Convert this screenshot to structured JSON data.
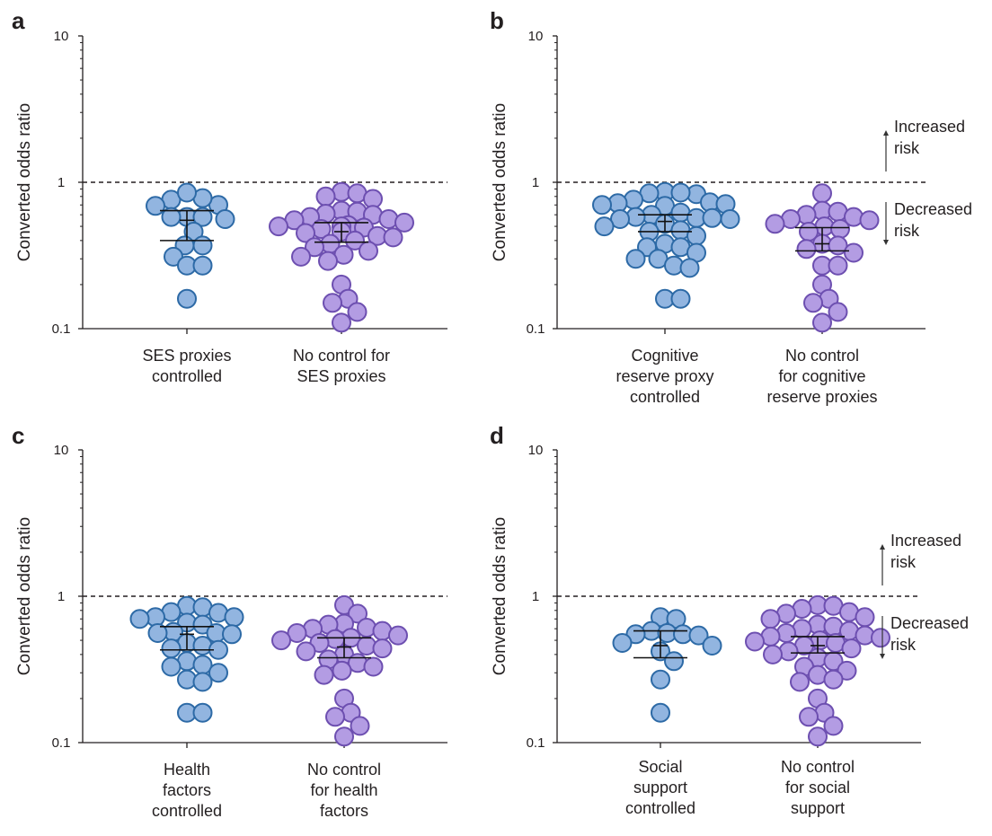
{
  "colors": {
    "controlled_fill": "#92b5e0",
    "controlled_stroke": "#2d6aa6",
    "uncontrolled_fill": "#b39ce3",
    "uncontrolled_stroke": "#6d4fb0",
    "axis": "#231f20"
  },
  "annotation": {
    "increased": [
      "Increased",
      "risk"
    ],
    "decreased": [
      "Decreased",
      "risk"
    ]
  },
  "chart_data": [
    {
      "type": "scatter",
      "panel": "a",
      "ylabel": "Converted odds ratio",
      "yscale": "log",
      "ylim": [
        0.1,
        10
      ],
      "yticks": [
        "10",
        "1",
        "0.1"
      ],
      "reference_line": 1,
      "show_risk_annotation": false,
      "categories": [
        {
          "label": [
            "SES proxies",
            "controlled"
          ],
          "group": "controlled",
          "ci": [
            0.4,
            0.64
          ],
          "center": 0.55,
          "points": [
            0.7,
            0.76,
            0.78,
            0.85,
            0.69,
            0.58,
            0.58,
            0.58,
            0.56,
            0.46,
            0.37,
            0.37,
            0.31,
            0.27,
            0.27,
            0.16
          ]
        },
        {
          "label": [
            "No control for",
            "SES proxies"
          ],
          "group": "uncontrolled",
          "ci": [
            0.39,
            0.53
          ],
          "center": 0.46,
          "points": [
            0.86,
            0.84,
            0.8,
            0.77,
            0.64,
            0.63,
            0.61,
            0.6,
            0.58,
            0.56,
            0.55,
            0.53,
            0.51,
            0.5,
            0.5,
            0.49,
            0.48,
            0.46,
            0.45,
            0.43,
            0.42,
            0.4,
            0.38,
            0.36,
            0.34,
            0.32,
            0.31,
            0.29,
            0.2,
            0.16,
            0.15,
            0.13,
            0.11
          ]
        }
      ]
    },
    {
      "type": "scatter",
      "panel": "b",
      "ylabel": "Converted odds ratio",
      "yscale": "log",
      "ylim": [
        0.1,
        10
      ],
      "yticks": [
        "10",
        "1",
        "0.1"
      ],
      "reference_line": 1,
      "show_risk_annotation": true,
      "categories": [
        {
          "label": [
            "Cognitive",
            "reserve proxy",
            "controlled"
          ],
          "group": "controlled",
          "ci": [
            0.46,
            0.6
          ],
          "center": 0.54,
          "points": [
            0.86,
            0.83,
            0.84,
            0.85,
            0.76,
            0.73,
            0.72,
            0.7,
            0.69,
            0.71,
            0.62,
            0.6,
            0.58,
            0.57,
            0.57,
            0.56,
            0.56,
            0.5,
            0.52,
            0.47,
            0.46,
            0.43,
            0.38,
            0.36,
            0.36,
            0.33,
            0.3,
            0.3,
            0.27,
            0.26,
            0.16,
            0.16
          ]
        },
        {
          "label": [
            "No control",
            "for cognitive",
            "reserve proxies"
          ],
          "group": "uncontrolled",
          "ci": [
            0.34,
            0.49
          ],
          "center": 0.38,
          "points": [
            0.84,
            0.64,
            0.63,
            0.6,
            0.58,
            0.56,
            0.55,
            0.52,
            0.5,
            0.48,
            0.46,
            0.38,
            0.37,
            0.35,
            0.33,
            0.27,
            0.27,
            0.2,
            0.16,
            0.15,
            0.13,
            0.11
          ]
        }
      ]
    },
    {
      "type": "scatter",
      "panel": "c",
      "ylabel": "Converted odds ratio",
      "yscale": "log",
      "ylim": [
        0.1,
        10
      ],
      "yticks": [
        "10",
        "1",
        "0.1"
      ],
      "reference_line": 1,
      "show_risk_annotation": false,
      "categories": [
        {
          "label": [
            "Health",
            "factors",
            "controlled"
          ],
          "group": "controlled",
          "ci": [
            0.43,
            0.62
          ],
          "center": 0.55,
          "points": [
            0.86,
            0.84,
            0.78,
            0.77,
            0.72,
            0.72,
            0.7,
            0.66,
            0.64,
            0.57,
            0.56,
            0.56,
            0.55,
            0.48,
            0.46,
            0.44,
            0.43,
            0.36,
            0.34,
            0.33,
            0.3,
            0.27,
            0.26,
            0.16,
            0.16
          ]
        },
        {
          "label": [
            "No control",
            "for health",
            "factors"
          ],
          "group": "uncontrolled",
          "ci": [
            0.38,
            0.52
          ],
          "center": 0.45,
          "points": [
            0.87,
            0.76,
            0.65,
            0.64,
            0.61,
            0.6,
            0.58,
            0.56,
            0.54,
            0.52,
            0.51,
            0.5,
            0.48,
            0.46,
            0.44,
            0.42,
            0.4,
            0.37,
            0.35,
            0.33,
            0.31,
            0.29,
            0.2,
            0.16,
            0.15,
            0.13,
            0.11
          ]
        }
      ]
    },
    {
      "type": "scatter",
      "panel": "d",
      "ylabel": "Converted odds ratio",
      "yscale": "log",
      "ylim": [
        0.1,
        10
      ],
      "yticks": [
        "10",
        "1",
        "0.1"
      ],
      "reference_line": 1,
      "show_risk_annotation": true,
      "categories": [
        {
          "label": [
            "Social",
            "support",
            "controlled"
          ],
          "group": "controlled",
          "ci": [
            0.38,
            0.58
          ],
          "center": 0.46,
          "points": [
            0.72,
            0.7,
            0.58,
            0.56,
            0.55,
            0.55,
            0.54,
            0.48,
            0.46,
            0.42,
            0.36,
            0.27,
            0.16
          ]
        },
        {
          "label": [
            "No control",
            "for social",
            "support"
          ],
          "group": "uncontrolled",
          "ci": [
            0.41,
            0.53
          ],
          "center": 0.46,
          "points": [
            0.87,
            0.86,
            0.82,
            0.78,
            0.76,
            0.72,
            0.7,
            0.64,
            0.62,
            0.6,
            0.58,
            0.56,
            0.54,
            0.53,
            0.52,
            0.5,
            0.49,
            0.48,
            0.46,
            0.44,
            0.42,
            0.4,
            0.38,
            0.36,
            0.33,
            0.31,
            0.29,
            0.27,
            0.26,
            0.2,
            0.16,
            0.15,
            0.13,
            0.11
          ]
        }
      ]
    }
  ]
}
